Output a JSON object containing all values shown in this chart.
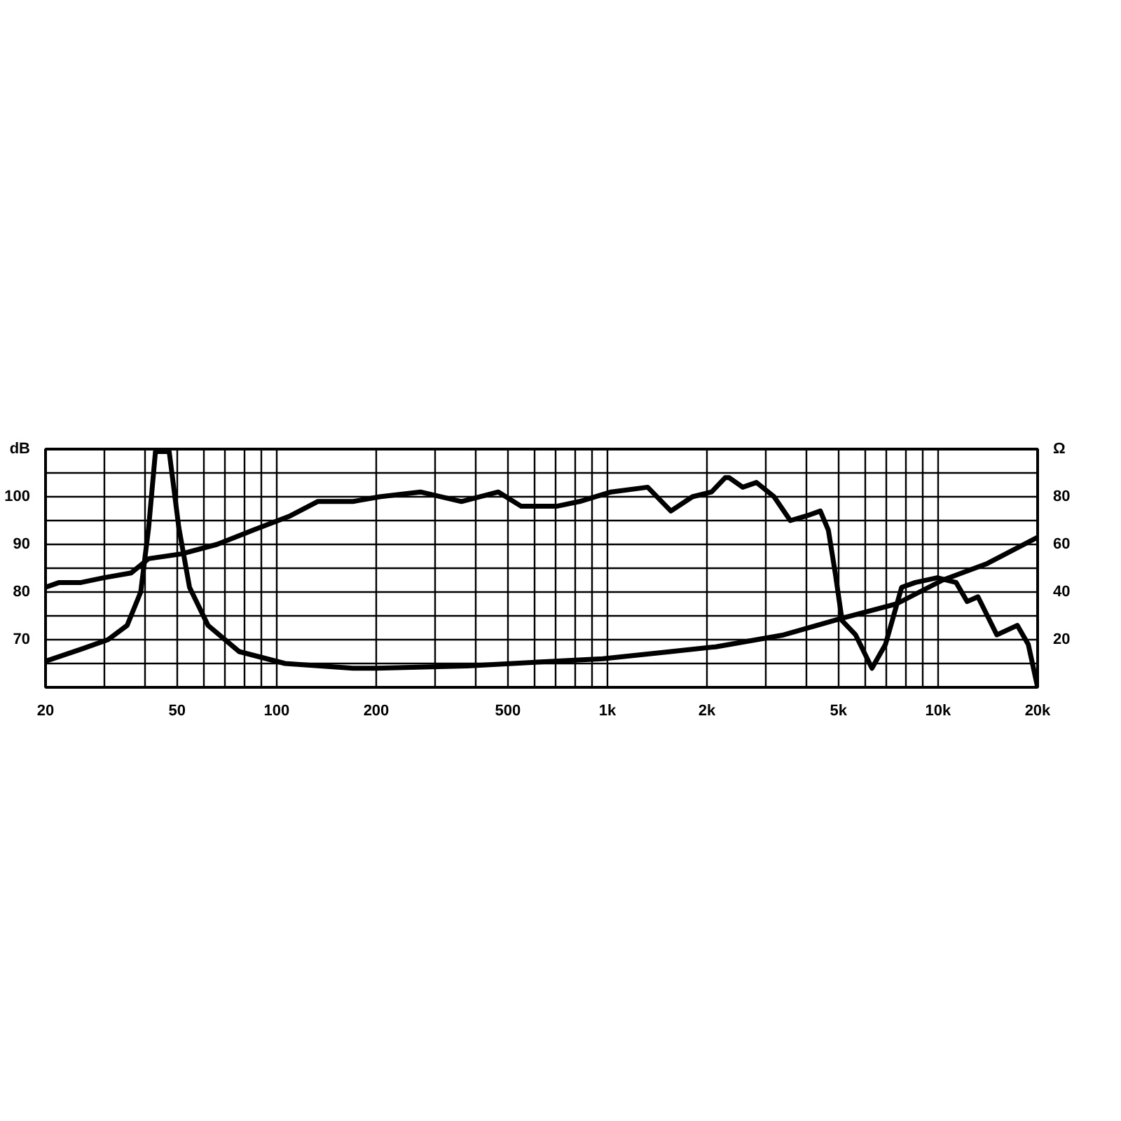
{
  "chart_data": {
    "type": "line",
    "xlim": [
      20,
      20000
    ],
    "log": "x",
    "grid": true,
    "line_style": "solid",
    "marker": "none",
    "xticks": [
      20,
      {
        "value": 30,
        "label": null
      },
      {
        "value": 40,
        "label": null
      },
      50,
      {
        "value": 60,
        "label": null
      },
      {
        "value": 70,
        "label": null
      },
      {
        "value": 80,
        "label": null
      },
      {
        "value": 90,
        "label": null
      },
      100,
      200,
      {
        "value": 300,
        "label": null
      },
      {
        "value": 400,
        "label": null
      },
      500,
      {
        "value": 600,
        "label": null
      },
      {
        "value": 700,
        "label": null
      },
      {
        "value": 800,
        "label": null
      },
      {
        "value": 900,
        "label": null
      },
      {
        "value": 1000,
        "label": "1k"
      },
      {
        "value": 2000,
        "label": "2k"
      },
      {
        "value": 3000,
        "label": null
      },
      {
        "value": 4000,
        "label": null
      },
      {
        "value": 5000,
        "label": "5k"
      },
      {
        "value": 6000,
        "label": null
      },
      {
        "value": 7000,
        "label": null
      },
      {
        "value": 8000,
        "label": null
      },
      {
        "value": 9000,
        "label": null
      },
      {
        "value": 10000,
        "label": "10k"
      },
      {
        "value": 20000,
        "label": "20k"
      }
    ],
    "ylim": [
      60,
      110
    ],
    "yticks": [
      {
        "value": 60,
        "label": null
      },
      {
        "value": 65,
        "label": null
      },
      70,
      {
        "value": 75,
        "label": null
      },
      80,
      {
        "value": 85,
        "label": null
      },
      90,
      {
        "value": 95,
        "label": null
      },
      100,
      {
        "value": 105,
        "label": null
      },
      {
        "value": 110,
        "label": "dB"
      }
    ],
    "y2lim": [
      0,
      100
    ],
    "y2ticks": [
      20,
      40,
      60,
      80,
      {
        "value": 100,
        "label": "Ω"
      }
    ],
    "series": [
      {
        "color": "#000000",
        "x": [
          20,
          22,
          25.6,
          30,
          36.3,
          41,
          51.5,
          66,
          85,
          110,
          133,
          170,
          205,
          272,
          362,
          468,
          549,
          702,
          824,
          1026,
          1324,
          1556,
          1808,
          2066,
          2270,
          2336,
          2566,
          2824,
          3192,
          3574,
          4008,
          4404,
          4658,
          4886,
          5126,
          5632,
          6310,
          6934,
          7760,
          8540,
          9940,
          11340,
          12240,
          13200,
          15060,
          17360,
          18740,
          20000
        ],
        "values": [
          81,
          82,
          82,
          83,
          84,
          87,
          88,
          90,
          93,
          96,
          99,
          99,
          100,
          101,
          99,
          101,
          98,
          98,
          99,
          101,
          102,
          97,
          100,
          101,
          104,
          104,
          102,
          103,
          100,
          95,
          96,
          97,
          93,
          84,
          74,
          71,
          64,
          69,
          81,
          82,
          83,
          82,
          78,
          79,
          71,
          73,
          69,
          60
        ]
      },
      {
        "color": "#000000",
        "axis": "y2",
        "x": [
          20,
          25.6,
          30.9,
          35.3,
          38.8,
          41,
          43,
          47.3,
          50.6,
          54.5,
          62,
          77,
          106,
          170,
          200,
          376,
          968,
          1556,
          2126,
          3412,
          5126,
          7480,
          10320,
          14100,
          20000
        ],
        "values": [
          11,
          16,
          20,
          26,
          40,
          67,
          99,
          99,
          67,
          42,
          26,
          15,
          10,
          8,
          8,
          9,
          12,
          15,
          17,
          22,
          29,
          35,
          45,
          52,
          63
        ]
      }
    ]
  }
}
